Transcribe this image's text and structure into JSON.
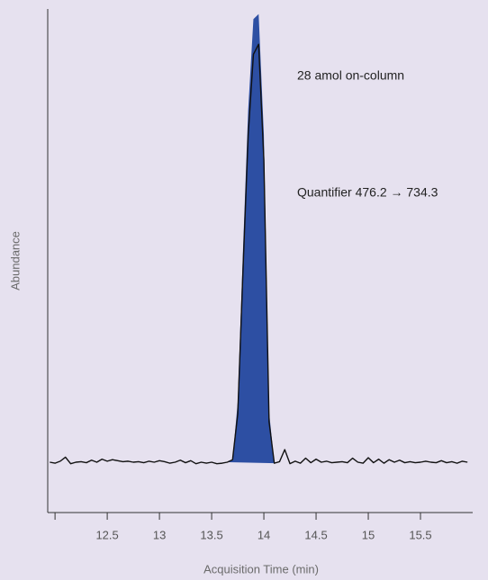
{
  "chart_data": {
    "type": "chromatogram",
    "annotations": [
      "28 amol on-column",
      "Quantifier 476.2 → 734.3"
    ],
    "xlabel": "Acquisition Time (min)",
    "ylabel": "Abundance",
    "xlim": [
      11.93,
      16.0
    ],
    "ylim": [
      0,
      100
    ],
    "xticks": [
      {
        "value": 12,
        "label": null
      },
      12.5,
      13,
      13.5,
      14,
      14.5,
      15,
      15.5
    ],
    "x": [
      11.95,
      12,
      12.05,
      12.1,
      12.15,
      12.2,
      12.25,
      12.3,
      12.35,
      12.4,
      12.45,
      12.5,
      12.55,
      12.6,
      12.65,
      12.7,
      12.75,
      12.8,
      12.85,
      12.9,
      12.95,
      13,
      13.05,
      13.1,
      13.15,
      13.2,
      13.25,
      13.3,
      13.35,
      13.4,
      13.45,
      13.5,
      13.55,
      13.6,
      13.65,
      13.7,
      13.75,
      13.8,
      13.85,
      13.9,
      13.95,
      14,
      14.05,
      14.1,
      14.15,
      14.2,
      14.25,
      14.3,
      14.35,
      14.4,
      14.45,
      14.5,
      14.55,
      14.6,
      14.65,
      14.7,
      14.75,
      14.8,
      14.85,
      14.9,
      14.95,
      15,
      15.05,
      15.1,
      15.15,
      15.2,
      15.25,
      15.3,
      15.35,
      15.4,
      15.45,
      15.5,
      15.55,
      15.6,
      15.65,
      15.7,
      15.75,
      15.8,
      15.85,
      15.9,
      15.95
    ],
    "series": [
      {
        "kind": "area",
        "color": "#2d4fa3",
        "values": [
          null,
          null,
          null,
          null,
          null,
          null,
          null,
          null,
          null,
          null,
          null,
          null,
          null,
          null,
          null,
          null,
          null,
          null,
          null,
          null,
          null,
          null,
          null,
          null,
          null,
          null,
          null,
          null,
          null,
          null,
          null,
          null,
          null,
          null,
          10,
          10.5,
          22,
          52,
          80,
          98,
          99,
          75,
          20,
          9.8,
          null,
          null,
          null,
          null,
          null,
          null,
          null,
          null,
          null,
          null,
          null,
          null,
          null,
          null,
          null,
          null,
          null,
          null,
          null,
          null,
          null,
          null,
          null,
          null,
          null,
          null,
          null,
          null,
          null,
          null,
          null,
          null,
          null,
          null,
          null,
          null,
          null
        ]
      },
      {
        "kind": "line",
        "color": "#111111",
        "values": [
          10,
          9.8,
          10.2,
          11,
          9.7,
          10,
          10.1,
          9.9,
          10.4,
          10,
          10.6,
          10.2,
          10.5,
          10.3,
          10.1,
          10.2,
          10,
          10.1,
          9.9,
          10.2,
          10,
          10.3,
          10.1,
          9.8,
          10,
          10.4,
          9.9,
          10.3,
          9.7,
          10,
          9.8,
          10,
          9.7,
          9.8,
          10,
          10.5,
          19.6,
          48,
          75,
          91,
          93,
          70,
          18,
          9.8,
          10.1,
          12.5,
          9.7,
          10.2,
          9.8,
          10.8,
          9.9,
          10.6,
          10,
          10.2,
          9.9,
          10,
          10.1,
          9.9,
          10.8,
          10,
          9.8,
          10.9,
          9.9,
          10.6,
          9.8,
          10.5,
          10,
          10.4,
          9.9,
          10.1,
          9.9,
          10,
          10.2,
          10,
          9.9,
          10.3,
          9.9,
          10.1,
          9.8,
          10.2,
          10
        ]
      }
    ]
  }
}
